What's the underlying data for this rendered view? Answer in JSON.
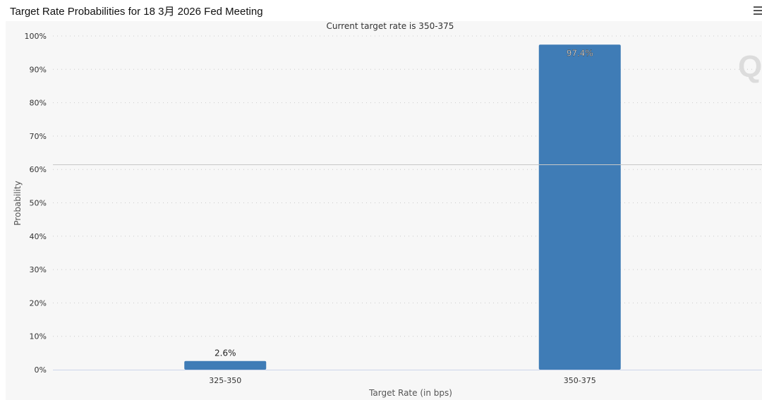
{
  "page": {
    "title": "Target Rate Probabilities for 18 3月 2026 Fed Meeting",
    "menu_icon": "hamburger-menu-icon",
    "watermark": "Q"
  },
  "chart_data": {
    "type": "bar",
    "subtitle": "Current target rate is 350-375",
    "xlabel": "Target Rate (in bps)",
    "ylabel": "Probability",
    "categories": [
      "325-350",
      "350-375"
    ],
    "values": [
      2.6,
      97.4
    ],
    "value_labels": [
      "2.6%",
      "97.4%"
    ],
    "ylim": [
      0,
      100
    ],
    "yticks": [
      "0%",
      "10%",
      "20%",
      "30%",
      "40%",
      "50%",
      "60%",
      "70%",
      "80%",
      "90%",
      "100%"
    ],
    "grid": true,
    "legend": "none",
    "colors": {
      "bar": "#3f7cb6",
      "grid": "#cccccc",
      "text": "#333333",
      "background": "#f7f7f7"
    }
  }
}
